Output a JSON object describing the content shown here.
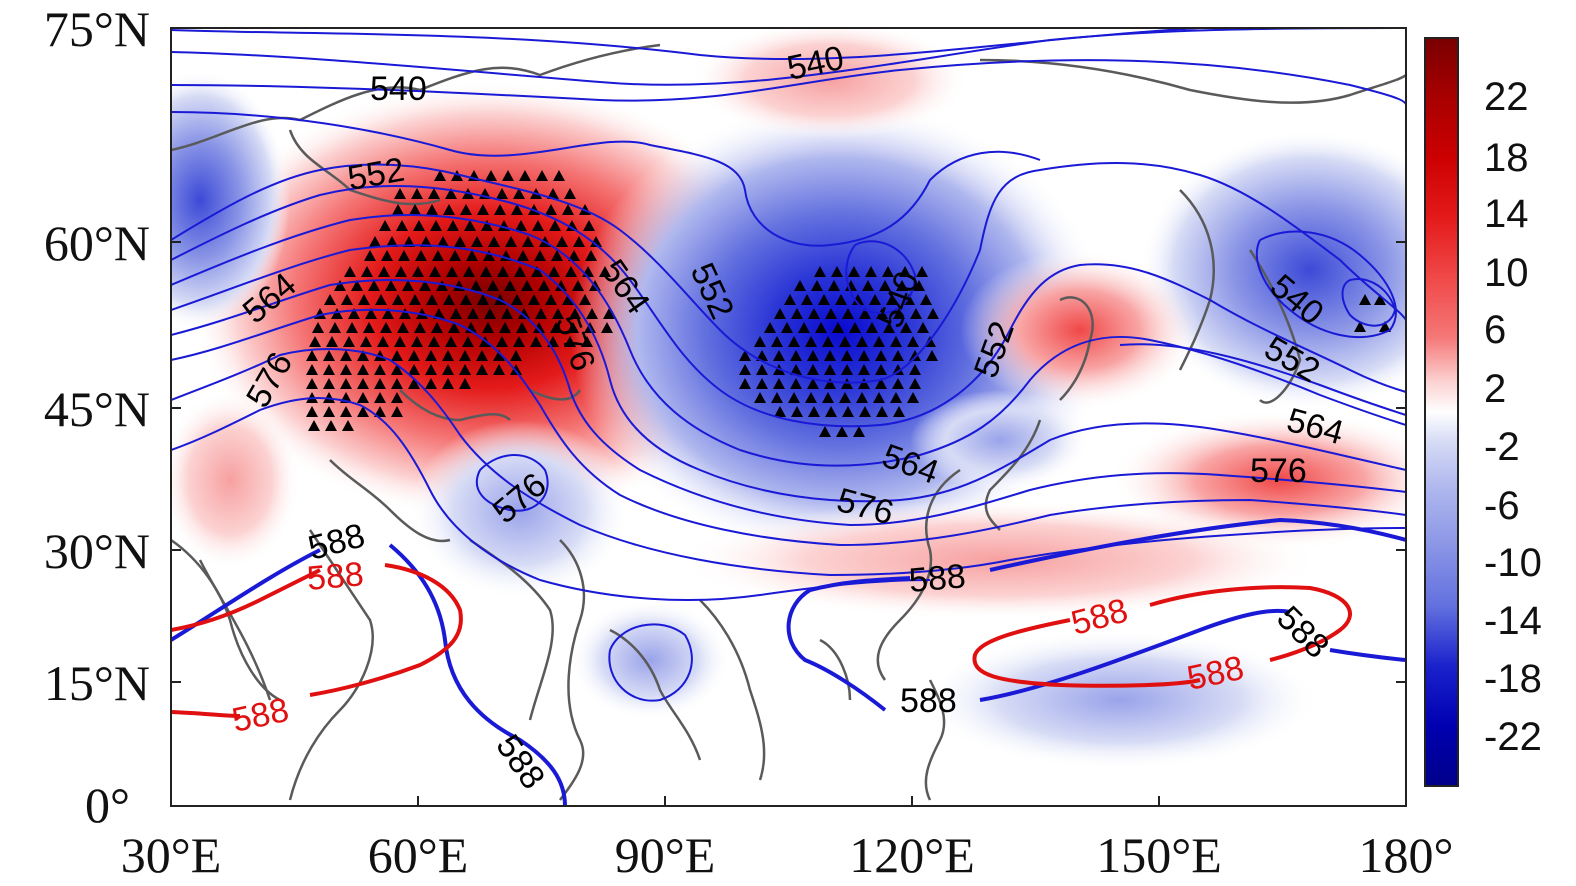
{
  "map": {
    "x_ticks": [
      "30°E",
      "60°E",
      "90°E",
      "120°E",
      "150°E",
      "180°"
    ],
    "y_ticks": [
      "75°N",
      "60°N",
      "45°N",
      "30°N",
      "15°N",
      "0°"
    ],
    "extent": {
      "lon": [
        30,
        180
      ],
      "lat": [
        0,
        75
      ]
    },
    "colors": {
      "contour_blue": "#1a1ad6",
      "contour_red": "#e01010",
      "coastline": "#5a5a5a",
      "frame": "#222222"
    }
  },
  "colorbar": {
    "labels": [
      "22",
      "18",
      "14",
      "10",
      "6",
      "2",
      "-2",
      "-6",
      "-10",
      "-14",
      "-18",
      "-22"
    ],
    "colors_top_to_bottom": [
      "#7a0000",
      "#a80000",
      "#cc0000",
      "#e41a1a",
      "#f04848",
      "#f57777",
      "#f9a5a5",
      "#fcd2d2",
      "#ffffff",
      "#d6dbf5",
      "#b0b8ee",
      "#8a95e6",
      "#6270df",
      "#3c4ad7",
      "#1a22cc",
      "#0000b0",
      "#00008a"
    ]
  },
  "contour_labels": [
    {
      "text": "540",
      "color": "black"
    },
    {
      "text": "540",
      "color": "black"
    },
    {
      "text": "552",
      "color": "black"
    },
    {
      "text": "564",
      "color": "black"
    },
    {
      "text": "576",
      "color": "black"
    },
    {
      "text": "576",
      "color": "black"
    },
    {
      "text": "564",
      "color": "black"
    },
    {
      "text": "552",
      "color": "black"
    },
    {
      "text": "540",
      "color": "black"
    },
    {
      "text": "552",
      "color": "black"
    },
    {
      "text": "540",
      "color": "black"
    },
    {
      "text": "552",
      "color": "black"
    },
    {
      "text": "564",
      "color": "black"
    },
    {
      "text": "576",
      "color": "black"
    },
    {
      "text": "564",
      "color": "black"
    },
    {
      "text": "576",
      "color": "black"
    },
    {
      "text": "576",
      "color": "black"
    },
    {
      "text": "588",
      "color": "black"
    },
    {
      "text": "588",
      "color": "red"
    },
    {
      "text": "588",
      "color": "red"
    },
    {
      "text": "588",
      "color": "black"
    },
    {
      "text": "588",
      "color": "black"
    },
    {
      "text": "588",
      "color": "black"
    },
    {
      "text": "588",
      "color": "red"
    },
    {
      "text": "588",
      "color": "black"
    },
    {
      "text": "588",
      "color": "red"
    }
  ]
}
